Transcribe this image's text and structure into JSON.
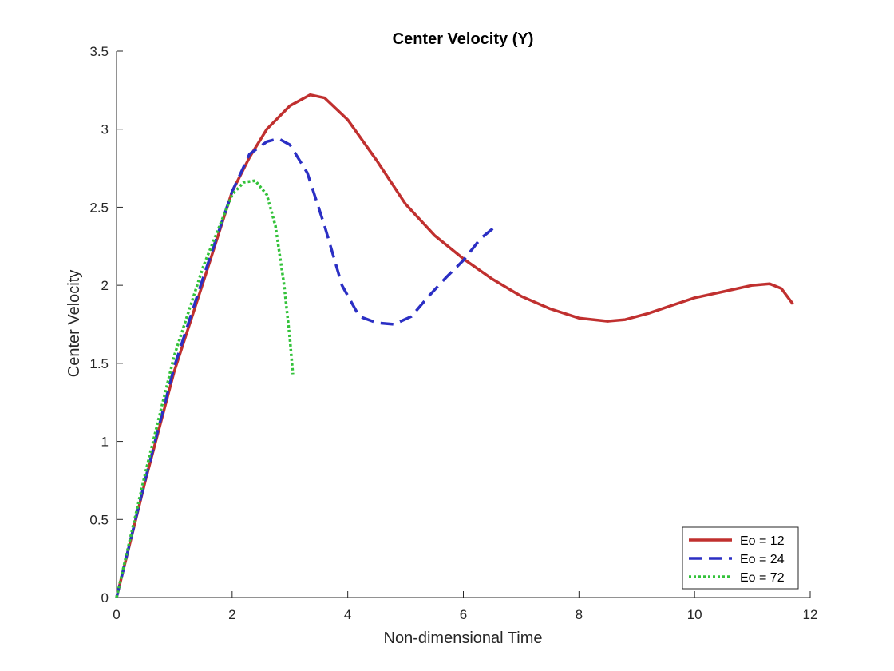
{
  "chart_data": {
    "type": "line",
    "title": "Center Velocity (Y)",
    "xlabel": "Non-dimensional Time",
    "ylabel": "Center Velocity",
    "xlim": [
      0,
      12
    ],
    "ylim": [
      0,
      3.5
    ],
    "xticks": [
      0,
      2,
      4,
      6,
      8,
      10,
      12
    ],
    "yticks": [
      0,
      0.5,
      1,
      1.5,
      2,
      2.5,
      3,
      3.5
    ],
    "xtick_labels": [
      "0",
      "2",
      "4",
      "6",
      "8",
      "10",
      "12"
    ],
    "ytick_labels": [
      "0",
      "0.5",
      "1",
      "1.5",
      "2",
      "2.5",
      "3",
      "3.5"
    ],
    "grid": false,
    "legend_position": "bottom-right",
    "series": [
      {
        "name": "Eo = 12",
        "color": "#c0302f",
        "style": "solid",
        "x": [
          0,
          0.5,
          1.0,
          1.5,
          2.0,
          2.3,
          2.6,
          3.0,
          3.35,
          3.6,
          4.0,
          4.5,
          5.0,
          5.5,
          6.0,
          6.5,
          7.0,
          7.5,
          8.0,
          8.5,
          8.8,
          9.2,
          9.6,
          10.0,
          10.5,
          11.0,
          11.3,
          11.5,
          11.7
        ],
        "y": [
          0,
          0.75,
          1.45,
          2.02,
          2.6,
          2.82,
          3.0,
          3.15,
          3.22,
          3.2,
          3.06,
          2.8,
          2.52,
          2.32,
          2.17,
          2.04,
          1.93,
          1.85,
          1.79,
          1.77,
          1.78,
          1.82,
          1.87,
          1.92,
          1.96,
          2.0,
          2.01,
          1.98,
          1.88
        ]
      },
      {
        "name": "Eo = 24",
        "color": "#2b2fc4",
        "style": "dashed",
        "x": [
          0,
          0.5,
          1.0,
          1.5,
          2.0,
          2.3,
          2.6,
          2.8,
          3.0,
          3.3,
          3.6,
          3.9,
          4.2,
          4.5,
          4.8,
          5.1,
          5.4,
          5.7,
          6.0,
          6.3,
          6.6
        ],
        "y": [
          0,
          0.76,
          1.48,
          2.05,
          2.6,
          2.84,
          2.92,
          2.94,
          2.9,
          2.72,
          2.38,
          2.0,
          1.8,
          1.76,
          1.75,
          1.8,
          1.93,
          2.05,
          2.16,
          2.3,
          2.39
        ]
      },
      {
        "name": "Eo = 72",
        "color": "#33c23a",
        "style": "dotted",
        "x": [
          0,
          0.5,
          1.0,
          1.5,
          2.0,
          2.2,
          2.4,
          2.6,
          2.75,
          2.9,
          3.0,
          3.05
        ],
        "y": [
          0,
          0.8,
          1.55,
          2.12,
          2.58,
          2.66,
          2.67,
          2.58,
          2.38,
          2.0,
          1.65,
          1.43
        ]
      }
    ]
  }
}
